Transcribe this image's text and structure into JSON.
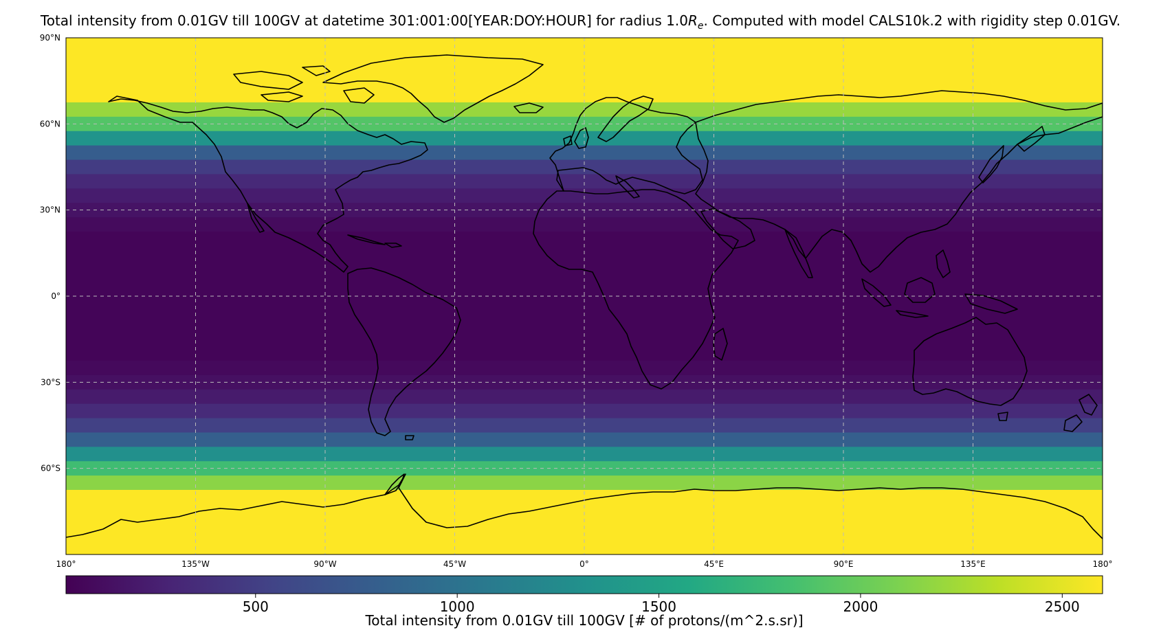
{
  "title": {
    "pre": "Total intensity from 0.01GV till 100GV at datetime 301:001:00[YEAR:DOY:HOUR] for radius 1.0",
    "r_symbol": "R",
    "r_sub": "e",
    "post": ". Computed with model CALS10k.2 with rigidity step 0.01GV."
  },
  "chart_data": {
    "type": "heatmap",
    "projection": "PlateCarree",
    "lon_range": [
      -180,
      180
    ],
    "lat_range": [
      -90,
      90
    ],
    "x_ticks": [
      {
        "value": -180,
        "label": "180°"
      },
      {
        "value": -135,
        "label": "135°W"
      },
      {
        "value": -90,
        "label": "90°W"
      },
      {
        "value": -45,
        "label": "45°W"
      },
      {
        "value": 0,
        "label": "0°"
      },
      {
        "value": 45,
        "label": "45°E"
      },
      {
        "value": 90,
        "label": "90°E"
      },
      {
        "value": 135,
        "label": "135°E"
      },
      {
        "value": 180,
        "label": "180°"
      }
    ],
    "y_ticks": [
      {
        "value": 90,
        "label": "90°N"
      },
      {
        "value": 60,
        "label": "60°N"
      },
      {
        "value": 30,
        "label": "30°N"
      },
      {
        "value": 0,
        "label": "0°"
      },
      {
        "value": -30,
        "label": "30°S"
      },
      {
        "value": -60,
        "label": "60°S"
      }
    ],
    "grid": true,
    "colormap": "viridis",
    "colorbar": {
      "range": [
        30,
        2600
      ],
      "ticks": [
        500,
        1000,
        1500,
        2000,
        2500
      ],
      "label": "Total intensity from 0.01GV till 100GV [# of protons/(m^2.s.sr)]",
      "orientation": "horizontal"
    },
    "lat_band_step": 5,
    "lat_band_intensity": [
      {
        "lat_from": 90,
        "lat_to": 67.5,
        "value": 2600
      },
      {
        "lat_from": 67.5,
        "lat_to": 62.5,
        "value": 2200
      },
      {
        "lat_from": 62.5,
        "lat_to": 57.5,
        "value": 1900
      },
      {
        "lat_from": 57.5,
        "lat_to": 52.5,
        "value": 1350
      },
      {
        "lat_from": 52.5,
        "lat_to": 47.5,
        "value": 780
      },
      {
        "lat_from": 47.5,
        "lat_to": 42.5,
        "value": 480
      },
      {
        "lat_from": 42.5,
        "lat_to": 37.5,
        "value": 330
      },
      {
        "lat_from": 37.5,
        "lat_to": 32.5,
        "value": 230
      },
      {
        "lat_from": 32.5,
        "lat_to": 27.5,
        "value": 160
      },
      {
        "lat_from": 27.5,
        "lat_to": 22.5,
        "value": 100
      },
      {
        "lat_from": 22.5,
        "lat_to": -22.5,
        "value": 60
      },
      {
        "lat_from": -22.5,
        "lat_to": -27.5,
        "value": 90
      },
      {
        "lat_from": -27.5,
        "lat_to": -32.5,
        "value": 140
      },
      {
        "lat_from": -32.5,
        "lat_to": -37.5,
        "value": 220
      },
      {
        "lat_from": -37.5,
        "lat_to": -42.5,
        "value": 340
      },
      {
        "lat_from": -42.5,
        "lat_to": -47.5,
        "value": 520
      },
      {
        "lat_from": -47.5,
        "lat_to": -52.5,
        "value": 800
      },
      {
        "lat_from": -52.5,
        "lat_to": -57.5,
        "value": 1300
      },
      {
        "lat_from": -57.5,
        "lat_to": -62.5,
        "value": 1800
      },
      {
        "lat_from": -62.5,
        "lat_to": -67.5,
        "value": 2150
      },
      {
        "lat_from": -67.5,
        "lat_to": -90,
        "value": 2600
      }
    ],
    "coastlines": "black"
  }
}
